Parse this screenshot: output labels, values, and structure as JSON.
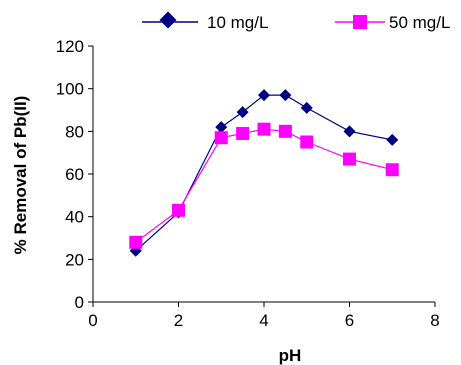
{
  "chart_data": {
    "type": "line",
    "xlabel": "pH",
    "ylabel": "% Removal of Pb(II)",
    "xlim": [
      0,
      8
    ],
    "ylim": [
      0,
      120
    ],
    "xticks": [
      0,
      2,
      4,
      6,
      8
    ],
    "yticks": [
      0,
      20,
      40,
      60,
      80,
      100,
      120
    ],
    "grid": false,
    "legend_position": "top",
    "series": [
      {
        "name": "10 mg/L",
        "color": "#000080",
        "marker": "diamond",
        "x": [
          1,
          2,
          3,
          3.5,
          4,
          4.5,
          5,
          6,
          7
        ],
        "y": [
          24,
          42,
          82,
          89,
          97,
          97,
          91,
          80,
          76
        ]
      },
      {
        "name": "50 mg/L",
        "color": "#ff00ff",
        "marker": "square",
        "x": [
          1,
          2,
          3,
          3.5,
          4,
          4.5,
          5,
          6,
          7
        ],
        "y": [
          28,
          43,
          77,
          79,
          81,
          80,
          75,
          67,
          62
        ]
      }
    ]
  }
}
